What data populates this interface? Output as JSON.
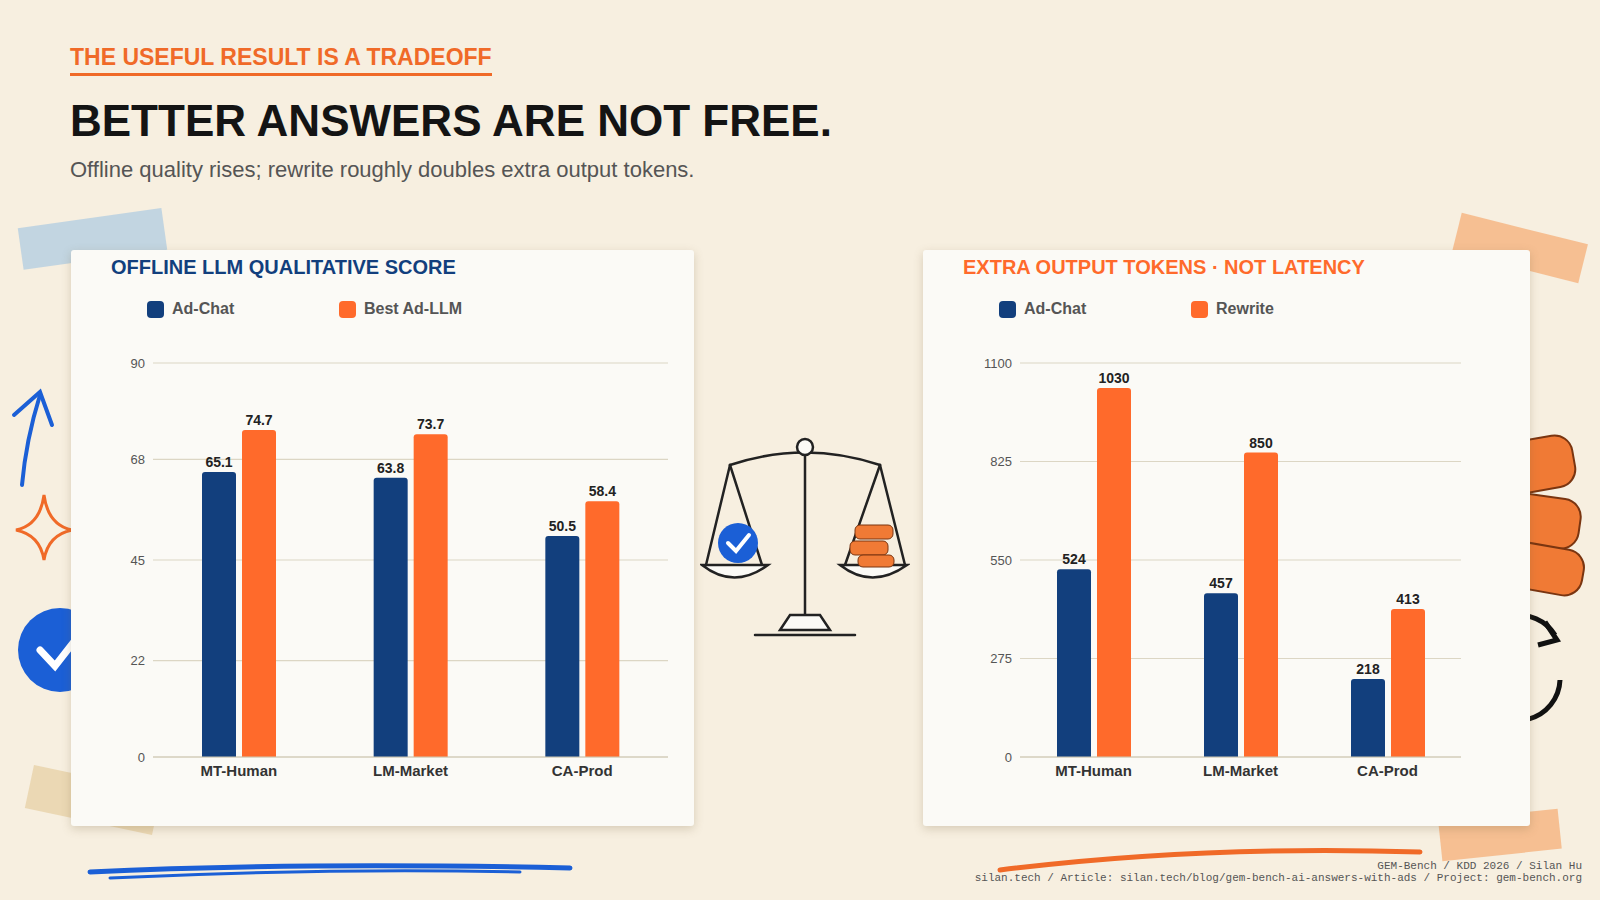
{
  "kicker": "THE USEFUL RESULT IS A TRADEOFF",
  "title": "BETTER ANSWERS ARE NOT FREE.",
  "subtitle": "Offline quality rises; rewrite roughly doubles extra output tokens.",
  "footer": [
    "GEM-Bench / KDD 2026 / Silan Hu",
    "silan.tech / Article: silan.tech/blog/gem-bench-ai-answers-with-ads / Project: gem-bench.org"
  ],
  "chart_data": [
    {
      "type": "bar",
      "title": "OFFLINE LLM QUALITATIVE SCORE",
      "categories": [
        "MT-Human",
        "LM-Market",
        "CA-Prod"
      ],
      "series": [
        {
          "name": "Ad-Chat",
          "color": "#123f7d",
          "values": [
            65.1,
            63.8,
            50.5
          ]
        },
        {
          "name": "Best Ad-LLM",
          "color": "#ff6a2b",
          "values": [
            74.7,
            73.7,
            58.4
          ]
        }
      ],
      "ylim": [
        0,
        90
      ],
      "yticks": [
        0,
        22,
        45,
        68,
        90
      ],
      "grid": true,
      "legend": "top-left",
      "data_labels": true
    },
    {
      "type": "bar",
      "title": "EXTRA OUTPUT TOKENS · NOT LATENCY",
      "categories": [
        "MT-Human",
        "LM-Market",
        "CA-Prod"
      ],
      "series": [
        {
          "name": "Ad-Chat",
          "color": "#123f7d",
          "values": [
            524,
            457,
            218
          ]
        },
        {
          "name": "Rewrite",
          "color": "#ff6a2b",
          "values": [
            1030,
            850,
            413
          ]
        }
      ],
      "ylim": [
        0,
        1100
      ],
      "yticks": [
        0,
        275,
        550,
        825,
        1100
      ],
      "grid": true,
      "legend": "top-left",
      "data_labels": true
    }
  ]
}
